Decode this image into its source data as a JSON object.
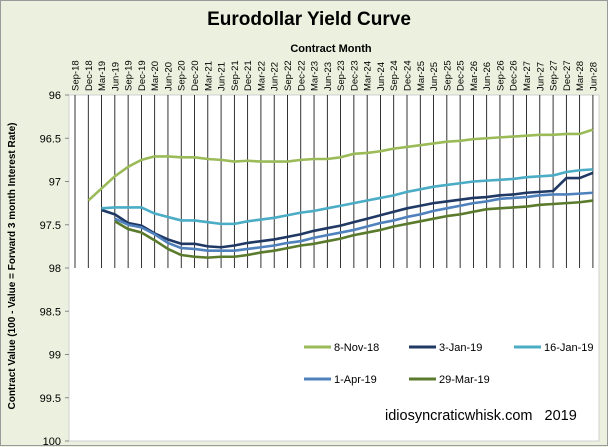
{
  "chart_data": {
    "type": "line",
    "title": "Eurodollar Yield Curve",
    "xlabel": "Contract Month",
    "ylabel": "Contract Value (100 - Value = Forward 3 month Interest Rate)",
    "categories": [
      "Sep-18",
      "Dec-18",
      "Mar-19",
      "Jun-19",
      "Sep-19",
      "Dec-19",
      "Mar-20",
      "Jun-20",
      "Sep-20",
      "Dec-20",
      "Mar-21",
      "Jun-21",
      "Sep-21",
      "Dec-21",
      "Mar-22",
      "Jun-22",
      "Sep-22",
      "Dec-22",
      "Mar-23",
      "Jun-23",
      "Sep-23",
      "Dec-23",
      "Mar-24",
      "Jun-24",
      "Sep-24",
      "Dec-24",
      "Mar-25",
      "Jun-25",
      "Sep-25",
      "Dec-25",
      "Mar-26",
      "Jun-26",
      "Sep-26",
      "Dec-26",
      "Mar-27",
      "Jun-27",
      "Sep-27",
      "Dec-27",
      "Mar-28",
      "Jun-28"
    ],
    "yticks": [
      "96",
      "96.5",
      "97",
      "97.5",
      "98",
      "98.5",
      "99",
      "99.5",
      "100"
    ],
    "ylim": [
      96,
      100
    ],
    "y_inverted": true,
    "grid": "vertical",
    "series": [
      {
        "name": "8-Nov-18",
        "color": "#9bbb59",
        "values": [
          null,
          97.22,
          97.08,
          96.94,
          96.83,
          96.75,
          96.71,
          96.71,
          96.72,
          96.72,
          96.74,
          96.75,
          96.77,
          96.76,
          96.77,
          96.77,
          96.77,
          96.75,
          96.74,
          96.74,
          96.72,
          96.68,
          96.67,
          96.65,
          96.62,
          96.6,
          96.58,
          96.56,
          96.54,
          96.53,
          96.51,
          96.5,
          96.49,
          96.48,
          96.47,
          96.46,
          96.46,
          96.45,
          96.45,
          96.4
        ]
      },
      {
        "name": "3-Jan-19",
        "color": "#1f3864",
        "values": [
          null,
          null,
          97.33,
          97.38,
          97.48,
          97.51,
          97.6,
          97.67,
          97.72,
          97.72,
          97.75,
          97.76,
          97.74,
          97.71,
          97.69,
          97.67,
          97.64,
          97.61,
          97.57,
          97.54,
          97.51,
          97.47,
          97.43,
          97.39,
          97.35,
          97.31,
          97.28,
          97.25,
          97.23,
          97.21,
          97.19,
          97.18,
          97.16,
          97.15,
          97.13,
          97.12,
          97.11,
          96.96,
          96.96,
          96.9
        ]
      },
      {
        "name": "16-Jan-19",
        "color": "#4bacc6",
        "values": [
          null,
          null,
          97.31,
          97.3,
          97.3,
          97.3,
          97.37,
          97.41,
          97.45,
          97.45,
          97.47,
          97.49,
          97.49,
          97.46,
          97.44,
          97.42,
          97.39,
          97.36,
          97.34,
          97.31,
          97.28,
          97.25,
          97.22,
          97.19,
          97.16,
          97.12,
          97.09,
          97.06,
          97.04,
          97.02,
          97.0,
          96.99,
          96.98,
          96.97,
          96.95,
          96.94,
          96.93,
          96.89,
          96.87,
          96.86
        ]
      },
      {
        "name": "1-Apr-19",
        "color": "#4f81bd",
        "values": [
          null,
          null,
          null,
          97.43,
          97.5,
          97.53,
          97.61,
          97.71,
          97.77,
          97.78,
          97.8,
          97.8,
          97.8,
          97.78,
          97.76,
          97.74,
          97.71,
          97.69,
          97.65,
          97.62,
          97.59,
          97.56,
          97.52,
          97.48,
          97.45,
          97.41,
          97.38,
          97.34,
          97.31,
          97.28,
          97.25,
          97.23,
          97.2,
          97.19,
          97.18,
          97.16,
          97.15,
          97.15,
          97.14,
          97.13
        ]
      },
      {
        "name": "29-Mar-19",
        "color": "#5a7a2c",
        "values": [
          null,
          null,
          null,
          97.46,
          97.55,
          97.59,
          97.68,
          97.78,
          97.85,
          97.87,
          97.88,
          97.87,
          97.87,
          97.85,
          97.82,
          97.8,
          97.77,
          97.74,
          97.72,
          97.69,
          97.66,
          97.62,
          97.59,
          97.56,
          97.52,
          97.49,
          97.46,
          97.43,
          97.4,
          97.38,
          97.35,
          97.32,
          97.31,
          97.3,
          97.29,
          97.27,
          97.26,
          97.25,
          97.24,
          97.22
        ]
      }
    ],
    "legend_position": "bottom-right",
    "annotation": "idiosyncraticwhisk.com   2019"
  }
}
